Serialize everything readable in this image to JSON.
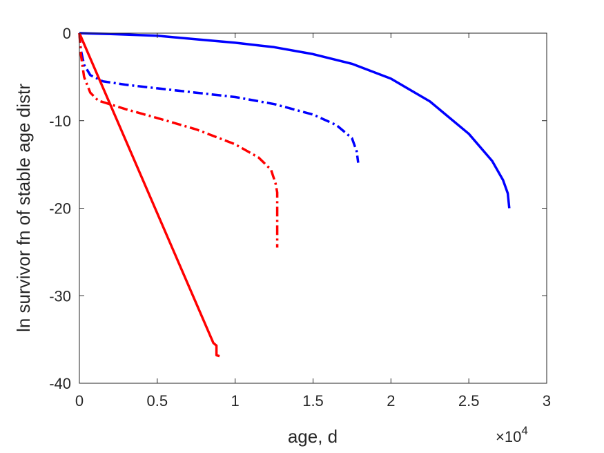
{
  "chart_data": {
    "type": "line",
    "title": "",
    "xlabel": "age, d",
    "ylabel": "ln survivor fn of stable age distr",
    "x_exponent_label": {
      "base": "×10",
      "exponent": "4"
    },
    "xlim": [
      0,
      3
    ],
    "ylim": [
      -40,
      0
    ],
    "x_ticks": [
      0,
      0.5,
      1,
      1.5,
      2,
      2.5,
      3
    ],
    "x_tick_labels": [
      "0",
      "0.5",
      "1",
      "1.5",
      "2",
      "2.5",
      "3"
    ],
    "y_ticks": [
      -40,
      -30,
      -20,
      -10,
      0
    ],
    "y_tick_labels": [
      "-40",
      "-30",
      "-20",
      "-10",
      "0"
    ],
    "grid": false,
    "legend": "none",
    "series": [
      {
        "color": "#0000ff",
        "style": "solid",
        "points": [
          [
            0,
            0
          ],
          [
            0.2,
            -0.1
          ],
          [
            0.5,
            -0.3
          ],
          [
            0.75,
            -0.7
          ],
          [
            1.0,
            -1.1
          ],
          [
            1.25,
            -1.6
          ],
          [
            1.5,
            -2.4
          ],
          [
            1.75,
            -3.5
          ],
          [
            2.0,
            -5.2
          ],
          [
            2.25,
            -7.8
          ],
          [
            2.5,
            -11.5
          ],
          [
            2.65,
            -14.6
          ],
          [
            2.72,
            -16.8
          ],
          [
            2.75,
            -18.3
          ],
          [
            2.76,
            -20.0
          ]
        ]
      },
      {
        "color": "#0000ff",
        "style": "dashdot",
        "points": [
          [
            0,
            0
          ],
          [
            0.01,
            -2.0
          ],
          [
            0.03,
            -3.6
          ],
          [
            0.07,
            -4.8
          ],
          [
            0.15,
            -5.5
          ],
          [
            0.3,
            -5.9
          ],
          [
            0.5,
            -6.3
          ],
          [
            0.75,
            -6.8
          ],
          [
            1.0,
            -7.3
          ],
          [
            1.25,
            -8.1
          ],
          [
            1.5,
            -9.3
          ],
          [
            1.65,
            -10.5
          ],
          [
            1.75,
            -12.0
          ],
          [
            1.78,
            -13.5
          ],
          [
            1.79,
            -14.8
          ]
        ]
      },
      {
        "color": "#ff0000",
        "style": "dashdot",
        "points": [
          [
            0,
            0
          ],
          [
            0.01,
            -2.5
          ],
          [
            0.03,
            -5.0
          ],
          [
            0.07,
            -6.8
          ],
          [
            0.12,
            -7.7
          ],
          [
            0.3,
            -8.7
          ],
          [
            0.5,
            -9.7
          ],
          [
            0.75,
            -11.0
          ],
          [
            1.0,
            -12.7
          ],
          [
            1.15,
            -14.2
          ],
          [
            1.23,
            -15.6
          ],
          [
            1.26,
            -17.2
          ],
          [
            1.27,
            -18.2
          ],
          [
            1.27,
            -20.5
          ],
          [
            1.27,
            -24.5
          ]
        ]
      },
      {
        "color": "#ff0000",
        "style": "solid",
        "points": [
          [
            0,
            0
          ],
          [
            0.86,
            -35.4
          ],
          [
            0.88,
            -35.7
          ],
          [
            0.88,
            -36.8
          ],
          [
            0.9,
            -36.9
          ]
        ]
      }
    ]
  }
}
